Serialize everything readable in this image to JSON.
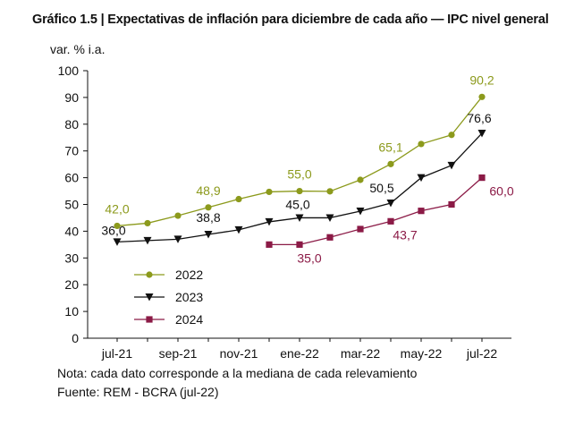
{
  "chart_data": {
    "type": "line",
    "title": "Gráfico 1.5 | Expectativas de inflación para diciembre de cada año — IPC nivel general",
    "ylabel": "var. % i.a.",
    "xlabel": "",
    "ylim": [
      0,
      100
    ],
    "yticks": [
      0,
      10,
      20,
      30,
      40,
      50,
      60,
      70,
      80,
      90,
      100
    ],
    "x": [
      "jul-21",
      "ago-21",
      "sep-21",
      "oct-21",
      "nov-21",
      "dic-21",
      "ene-22",
      "feb-22",
      "mar-22",
      "abr-22",
      "may-22",
      "jun-22",
      "jul-22"
    ],
    "xtick_labels": [
      "jul-21",
      "sep-21",
      "nov-21",
      "ene-22",
      "mar-22",
      "may-22",
      "jul-22"
    ],
    "legend_position": "bottom-left",
    "series": [
      {
        "name": "2022",
        "color": "#8c9a1c",
        "marker": "circle",
        "values": [
          42.0,
          43.0,
          45.8,
          48.9,
          52.0,
          54.7,
          55.0,
          54.9,
          59.2,
          65.1,
          72.6,
          76.0,
          90.2
        ]
      },
      {
        "name": "2023",
        "color": "#111111",
        "marker": "triangle-down",
        "values": [
          36.0,
          36.5,
          37.0,
          38.8,
          40.5,
          43.5,
          45.0,
          45.0,
          47.5,
          50.5,
          60.0,
          64.6,
          76.6
        ]
      },
      {
        "name": "2024",
        "color": "#8b1a46",
        "marker": "square",
        "values": [
          null,
          null,
          null,
          null,
          null,
          35.0,
          35.0,
          37.7,
          40.8,
          43.7,
          47.6,
          50.0,
          60.0
        ]
      }
    ],
    "data_labels": [
      {
        "series": 0,
        "index": 0,
        "text": "42,0"
      },
      {
        "series": 0,
        "index": 3,
        "text": "48,9"
      },
      {
        "series": 0,
        "index": 6,
        "text": "55,0"
      },
      {
        "series": 0,
        "index": 9,
        "text": "65,1"
      },
      {
        "series": 0,
        "index": 12,
        "text": "90,2"
      },
      {
        "series": 1,
        "index": 0,
        "text": "36,0"
      },
      {
        "series": 1,
        "index": 3,
        "text": "38,8"
      },
      {
        "series": 1,
        "index": 6,
        "text": "45,0"
      },
      {
        "series": 1,
        "index": 9,
        "text": "50,5"
      },
      {
        "series": 1,
        "index": 12,
        "text": "76,6"
      },
      {
        "series": 2,
        "index": 6,
        "text": "35,0"
      },
      {
        "series": 2,
        "index": 9,
        "text": "43,7"
      },
      {
        "series": 2,
        "index": 12,
        "text": "60,0"
      }
    ]
  },
  "footer": {
    "note": "Nota: cada dato corresponde a la mediana de cada relevamiento",
    "source": "Fuente: REM - BCRA (jul-22)"
  }
}
